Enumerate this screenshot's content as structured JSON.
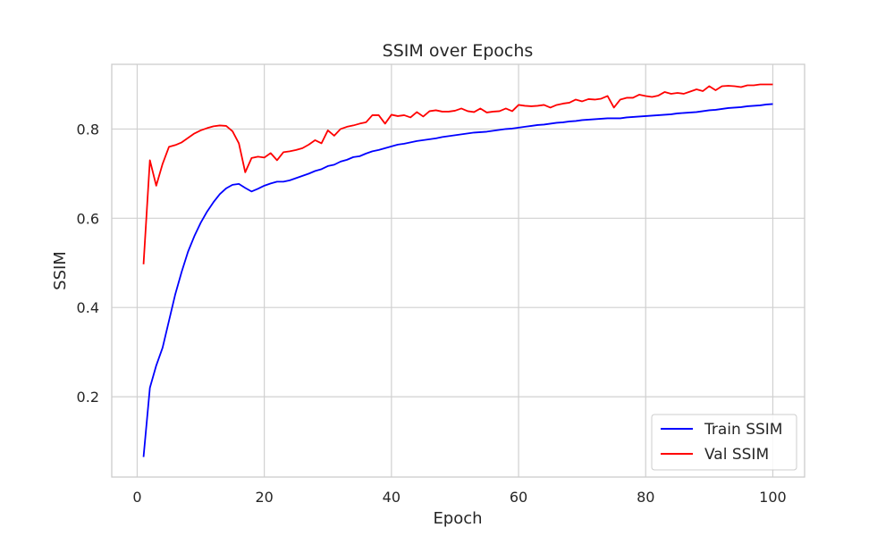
{
  "chart_data": {
    "type": "line",
    "title": "SSIM over Epochs",
    "xlabel": "Epoch",
    "ylabel": "SSIM",
    "xlim": [
      -4,
      105
    ],
    "ylim": [
      0.02,
      0.945
    ],
    "x_ticks": [
      0,
      20,
      40,
      60,
      80,
      100
    ],
    "y_ticks": [
      0.2,
      0.4,
      0.6,
      0.8
    ],
    "x_tick_labels": [
      "0",
      "20",
      "40",
      "60",
      "80",
      "100"
    ],
    "y_tick_labels": [
      "0.2",
      "0.4",
      "0.6",
      "0.8"
    ],
    "grid": true,
    "legend_position": "lower-right",
    "x": [
      1,
      2,
      3,
      4,
      5,
      6,
      7,
      8,
      9,
      10,
      11,
      12,
      13,
      14,
      15,
      16,
      17,
      18,
      19,
      20,
      21,
      22,
      23,
      24,
      25,
      26,
      27,
      28,
      29,
      30,
      31,
      32,
      33,
      34,
      35,
      36,
      37,
      38,
      39,
      40,
      41,
      42,
      43,
      44,
      45,
      46,
      47,
      48,
      49,
      50,
      51,
      52,
      53,
      54,
      55,
      56,
      57,
      58,
      59,
      60,
      61,
      62,
      63,
      64,
      65,
      66,
      67,
      68,
      69,
      70,
      71,
      72,
      73,
      74,
      75,
      76,
      77,
      78,
      79,
      80,
      81,
      82,
      83,
      84,
      85,
      86,
      87,
      88,
      89,
      90,
      91,
      92,
      93,
      94,
      95,
      96,
      97,
      98,
      99,
      100
    ],
    "series": [
      {
        "name": "Train SSIM",
        "color": "#0000ff",
        "values": [
          0.065,
          0.22,
          0.27,
          0.31,
          0.37,
          0.43,
          0.48,
          0.525,
          0.56,
          0.59,
          0.615,
          0.636,
          0.654,
          0.667,
          0.675,
          0.677,
          0.668,
          0.66,
          0.666,
          0.673,
          0.678,
          0.682,
          0.682,
          0.685,
          0.69,
          0.695,
          0.7,
          0.706,
          0.71,
          0.717,
          0.72,
          0.727,
          0.731,
          0.737,
          0.739,
          0.745,
          0.75,
          0.753,
          0.757,
          0.761,
          0.765,
          0.767,
          0.77,
          0.773,
          0.775,
          0.777,
          0.779,
          0.782,
          0.784,
          0.786,
          0.788,
          0.79,
          0.792,
          0.793,
          0.794,
          0.796,
          0.798,
          0.8,
          0.801,
          0.803,
          0.805,
          0.807,
          0.809,
          0.81,
          0.812,
          0.814,
          0.815,
          0.817,
          0.818,
          0.82,
          0.821,
          0.822,
          0.823,
          0.824,
          0.824,
          0.824,
          0.826,
          0.827,
          0.828,
          0.829,
          0.83,
          0.831,
          0.832,
          0.833,
          0.835,
          0.836,
          0.837,
          0.838,
          0.84,
          0.842,
          0.843,
          0.845,
          0.847,
          0.848,
          0.849,
          0.851,
          0.852,
          0.853,
          0.855,
          0.856
        ]
      },
      {
        "name": "Val SSIM",
        "color": "#ff0000",
        "values": [
          0.497,
          0.73,
          0.673,
          0.722,
          0.76,
          0.764,
          0.77,
          0.78,
          0.79,
          0.797,
          0.802,
          0.806,
          0.808,
          0.807,
          0.795,
          0.768,
          0.703,
          0.735,
          0.738,
          0.736,
          0.746,
          0.73,
          0.748,
          0.75,
          0.753,
          0.757,
          0.765,
          0.775,
          0.768,
          0.797,
          0.785,
          0.8,
          0.805,
          0.808,
          0.812,
          0.815,
          0.831,
          0.831,
          0.812,
          0.832,
          0.829,
          0.831,
          0.826,
          0.838,
          0.828,
          0.84,
          0.842,
          0.839,
          0.839,
          0.841,
          0.846,
          0.84,
          0.838,
          0.846,
          0.837,
          0.839,
          0.84,
          0.846,
          0.84,
          0.854,
          0.852,
          0.851,
          0.852,
          0.854,
          0.848,
          0.854,
          0.857,
          0.859,
          0.866,
          0.862,
          0.867,
          0.866,
          0.868,
          0.874,
          0.848,
          0.866,
          0.87,
          0.87,
          0.877,
          0.874,
          0.872,
          0.875,
          0.883,
          0.879,
          0.881,
          0.879,
          0.884,
          0.889,
          0.885,
          0.896,
          0.887,
          0.896,
          0.897,
          0.896,
          0.894,
          0.898,
          0.898,
          0.9,
          0.9,
          0.9
        ]
      }
    ]
  }
}
